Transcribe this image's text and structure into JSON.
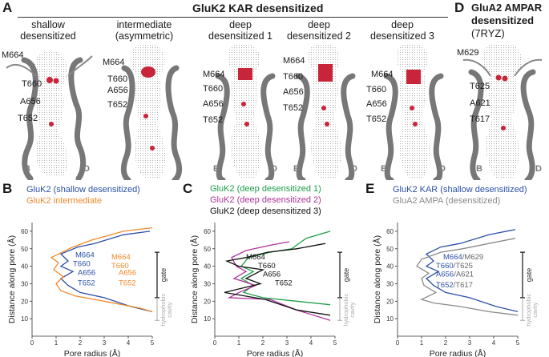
{
  "panels": {
    "A": {
      "letter": "A",
      "header": "GluK2 KAR desensitized",
      "columns": [
        {
          "title": "shallow\ndesensitized",
          "residues": [
            "M664",
            "T660",
            "A656",
            "T652"
          ],
          "helices": [
            "B",
            "D"
          ]
        },
        {
          "title": "intermediate\n(asymmetric)",
          "residues": [
            "M664",
            "T660",
            "A656",
            "T652"
          ],
          "helices": []
        },
        {
          "title": "deep\ndesensitized 1",
          "residues": [
            "M664",
            "T660",
            "A656",
            "T652"
          ],
          "helices": [
            "B",
            "D"
          ]
        },
        {
          "title": "deep\ndesensitized 2",
          "residues": [
            "M664",
            "T660",
            "A656",
            "T652"
          ],
          "helices": [
            "B",
            "D"
          ]
        },
        {
          "title": "deep\ndesensitized 3",
          "residues": [
            "M664",
            "T660",
            "A656",
            "T652"
          ],
          "helices": [
            "B",
            "D"
          ]
        }
      ]
    },
    "D": {
      "letter": "D",
      "header_bold": "GluA2 AMPAR",
      "header_line2_bold": "desensitized",
      "header_line2_normal": " (7RYZ)",
      "residues": [
        "M629",
        "T625",
        "A621",
        "T617"
      ],
      "helices": [
        "B",
        "D"
      ]
    },
    "B": {
      "letter": "B",
      "legend": [
        {
          "text": "GluK2 (shallow desensitized)",
          "color": "#2b4fa8"
        },
        {
          "text": "GluK2 intermediate",
          "color": "#f0892b"
        }
      ],
      "annotations_blue": [
        "M664",
        "T660",
        "A656",
        "T652"
      ],
      "annotations_orange": [
        "M664",
        "T660",
        "A656",
        "T652"
      ],
      "gate_label": "gate",
      "cavity_label": "hydrophobic cavity"
    },
    "C": {
      "letter": "C",
      "legend": [
        {
          "text": "GluK2 (deep desensitized 1)",
          "color": "#1f9e4a"
        },
        {
          "text": "GluK2 (deep desensitized 2)",
          "color": "#b0349a"
        },
        {
          "text": "GluK2 (deep desensitized 3)",
          "color": "#111111"
        }
      ],
      "annotations": [
        "M664",
        "T660",
        "A656",
        "T652"
      ],
      "gate_label": "gate",
      "cavity_label": "hydrophobic cavity"
    },
    "E": {
      "letter": "E",
      "legend": [
        {
          "text": "GluK2 KAR (shallow desensitized)",
          "color": "#2b4fa8"
        },
        {
          "text": "GluA2 AMPA (desensitized)",
          "color": "#8a8a8a"
        }
      ],
      "annotations": [
        {
          "a": "M664",
          "b": "M629"
        },
        {
          "a": "T660",
          "b": "T625"
        },
        {
          "a": "A656",
          "b": "A621"
        },
        {
          "a": "T652",
          "b": "T617"
        }
      ],
      "gate_label": "gate",
      "cavity_label": "hydrophobic cavity"
    }
  },
  "chart_data": [
    {
      "type": "line",
      "panel": "B",
      "xlabel": "Pore radius (Å)",
      "ylabel": "Distance along pore (Å)",
      "xlim": [
        0,
        5
      ],
      "ylim": [
        0,
        65
      ],
      "xticks": [
        0,
        1,
        2,
        3,
        4,
        5
      ],
      "yticks": [
        10,
        20,
        30,
        40,
        50,
        60
      ],
      "series": [
        {
          "name": "GluK2 (shallow desensitized)",
          "color": "#2b4fa8",
          "points": [
            [
              4.9,
              60
            ],
            [
              3.8,
              58
            ],
            [
              2.6,
              53
            ],
            [
              1.9,
              51
            ],
            [
              1.2,
              47
            ],
            [
              1.5,
              43
            ],
            [
              1.2,
              40
            ],
            [
              1.7,
              37
            ],
            [
              1.2,
              33
            ],
            [
              1.5,
              29
            ],
            [
              2.0,
              25
            ],
            [
              3.0,
              22
            ],
            [
              4.1,
              17
            ],
            [
              5.0,
              14
            ]
          ]
        },
        {
          "name": "GluK2 intermediate",
          "color": "#f0892b",
          "points": [
            [
              5.0,
              62
            ],
            [
              3.8,
              60
            ],
            [
              2.5,
              55
            ],
            [
              1.7,
              51
            ],
            [
              0.8,
              45
            ],
            [
              1.1,
              42
            ],
            [
              0.9,
              38
            ],
            [
              1.3,
              34
            ],
            [
              1.0,
              30
            ],
            [
              1.2,
              26
            ],
            [
              1.8,
              23
            ],
            [
              3.0,
              20
            ],
            [
              4.5,
              16
            ],
            [
              5.0,
              14
            ]
          ]
        }
      ]
    },
    {
      "type": "line",
      "panel": "C",
      "xlabel": "Pore radius (Å)",
      "ylabel": "Distance along pore (Å)",
      "xlim": [
        0,
        5
      ],
      "ylim": [
        0,
        65
      ],
      "xticks": [
        0,
        1,
        2,
        3,
        4,
        5
      ],
      "yticks": [
        10,
        20,
        30,
        40,
        50,
        60
      ],
      "series": [
        {
          "name": "GluK2 (deep desensitized 1)",
          "color": "#1f9e4a",
          "points": [
            [
              4.8,
              60
            ],
            [
              3.8,
              56
            ],
            [
              3.2,
              50
            ],
            [
              2.3,
              48
            ],
            [
              1.4,
              45
            ],
            [
              1.1,
              40
            ],
            [
              1.6,
              37
            ],
            [
              1.1,
              33
            ],
            [
              1.6,
              29
            ],
            [
              1.2,
              25
            ],
            [
              2.0,
              22
            ],
            [
              3.4,
              20
            ],
            [
              4.8,
              18
            ]
          ]
        },
        {
          "name": "GluK2 (deep desensitized 2)",
          "color": "#b0349a",
          "points": [
            [
              3.1,
              54
            ],
            [
              2.3,
              52
            ],
            [
              1.3,
              49
            ],
            [
              0.7,
              45
            ],
            [
              0.9,
              40
            ],
            [
              1.3,
              37
            ],
            [
              0.8,
              33
            ],
            [
              1.7,
              29
            ],
            [
              1.0,
              25
            ],
            [
              0.6,
              22
            ],
            [
              2.3,
              21
            ],
            [
              3.4,
              15
            ],
            [
              4.8,
              9
            ]
          ]
        },
        {
          "name": "GluK2 (deep desensitized 3)",
          "color": "#111111",
          "points": [
            [
              4.6,
              53
            ],
            [
              3.4,
              50
            ],
            [
              2.2,
              48
            ],
            [
              1.3,
              45
            ],
            [
              0.5,
              43
            ],
            [
              1.0,
              40
            ],
            [
              2.0,
              38
            ],
            [
              1.3,
              33
            ],
            [
              1.9,
              30
            ],
            [
              1.0,
              27
            ],
            [
              0.4,
              25
            ],
            [
              2.1,
              21
            ],
            [
              3.4,
              15
            ],
            [
              4.8,
              12
            ]
          ]
        }
      ]
    },
    {
      "type": "line",
      "panel": "E",
      "xlabel": "Pore radius (Å)",
      "ylabel": "Distance along pore (Å)",
      "xlim": [
        0,
        5
      ],
      "ylim": [
        0,
        65
      ],
      "xticks": [
        0,
        1,
        2,
        3,
        4,
        5
      ],
      "yticks": [
        10,
        20,
        30,
        40,
        50,
        60
      ],
      "series": [
        {
          "name": "GluK2 KAR (shallow desensitized)",
          "color": "#2b4fa8",
          "points": [
            [
              4.9,
              61
            ],
            [
              3.8,
              58
            ],
            [
              2.6,
              53
            ],
            [
              1.8,
              51
            ],
            [
              1.2,
              47
            ],
            [
              1.5,
              43
            ],
            [
              1.2,
              40
            ],
            [
              1.7,
              37
            ],
            [
              1.2,
              33
            ],
            [
              1.5,
              29
            ],
            [
              2.0,
              25
            ],
            [
              3.0,
              22
            ],
            [
              4.1,
              17
            ],
            [
              5.0,
              14
            ]
          ]
        },
        {
          "name": "GluA2 AMPA (desensitized)",
          "color": "#8a8a8a",
          "points": [
            [
              4.9,
              56
            ],
            [
              3.8,
              53
            ],
            [
              2.7,
              50
            ],
            [
              1.8,
              48
            ],
            [
              1.0,
              44
            ],
            [
              0.8,
              40
            ],
            [
              1.3,
              36
            ],
            [
              1.0,
              33
            ],
            [
              1.1,
              29
            ],
            [
              1.6,
              25
            ],
            [
              1.0,
              21
            ],
            [
              1.5,
              19
            ],
            [
              2.6,
              17
            ],
            [
              3.8,
              14
            ],
            [
              5.0,
              12
            ]
          ]
        }
      ]
    }
  ]
}
